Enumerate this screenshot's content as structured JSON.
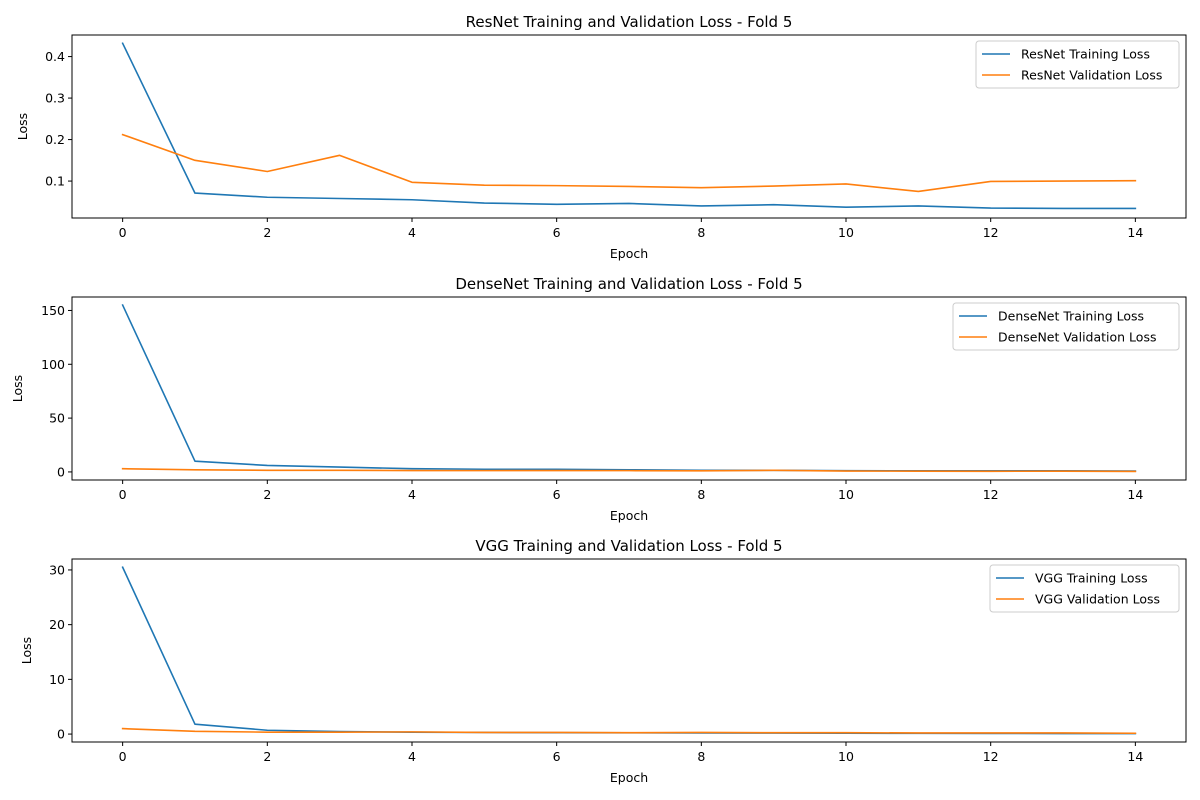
{
  "chart_data": [
    {
      "type": "line",
      "title": "ResNet Training and Validation Loss - Fold 5",
      "xlabel": "Epoch",
      "ylabel": "Loss",
      "xlim": [
        -0.7,
        14.7
      ],
      "ylim": [
        0.011,
        0.452
      ],
      "xticks": [
        0,
        2,
        4,
        6,
        8,
        10,
        12,
        14
      ],
      "yticks": [
        0.1,
        0.2,
        0.3,
        0.4
      ],
      "ytick_labels": [
        "0.1",
        "0.2",
        "0.3",
        "0.4"
      ],
      "grid": false,
      "legend": "top-right",
      "x": [
        0,
        1,
        2,
        3,
        4,
        5,
        6,
        7,
        8,
        9,
        10,
        11,
        12,
        13,
        14
      ],
      "series": [
        {
          "name": "ResNet Training Loss",
          "color": "#1f77b4",
          "values": [
            0.432,
            0.071,
            0.061,
            0.058,
            0.055,
            0.047,
            0.044,
            0.046,
            0.04,
            0.043,
            0.037,
            0.04,
            0.035,
            0.034,
            0.034
          ]
        },
        {
          "name": "ResNet Validation Loss",
          "color": "#ff7f0e",
          "values": [
            0.212,
            0.15,
            0.123,
            0.162,
            0.097,
            0.09,
            0.089,
            0.087,
            0.084,
            0.088,
            0.093,
            0.075,
            0.099,
            0.1,
            0.101
          ]
        }
      ]
    },
    {
      "type": "line",
      "title": "DenseNet Training and Validation Loss - Fold 5",
      "xlabel": "Epoch",
      "ylabel": "Loss",
      "xlim": [
        -0.7,
        14.7
      ],
      "ylim": [
        -7.5,
        162.5
      ],
      "xticks": [
        0,
        2,
        4,
        6,
        8,
        10,
        12,
        14
      ],
      "yticks": [
        0,
        50,
        100,
        150
      ],
      "ytick_labels": [
        "0",
        "50",
        "100",
        "150"
      ],
      "grid": false,
      "legend": "top-right",
      "x": [
        0,
        1,
        2,
        3,
        4,
        5,
        6,
        7,
        8,
        9,
        10,
        11,
        12,
        13,
        14
      ],
      "series": [
        {
          "name": "DenseNet Training Loss",
          "color": "#1f77b4",
          "values": [
            155.0,
            10.0,
            6.0,
            4.5,
            3.0,
            2.5,
            2.5,
            2.0,
            1.5,
            1.5,
            1.2,
            1.0,
            1.0,
            1.0,
            0.8
          ]
        },
        {
          "name": "DenseNet Validation Loss",
          "color": "#ff7f0e",
          "values": [
            3.0,
            2.0,
            1.5,
            1.5,
            1.3,
            1.2,
            1.3,
            1.2,
            1.0,
            1.5,
            0.8,
            0.7,
            0.6,
            0.7,
            0.5
          ]
        }
      ]
    },
    {
      "type": "line",
      "title": "VGG Training and Validation Loss - Fold 5",
      "xlabel": "Epoch",
      "ylabel": "Loss",
      "xlim": [
        -0.7,
        14.7
      ],
      "ylim": [
        -1.45,
        32.0
      ],
      "xticks": [
        0,
        2,
        4,
        6,
        8,
        10,
        12,
        14
      ],
      "yticks": [
        0,
        10,
        20,
        30
      ],
      "ytick_labels": [
        "0",
        "10",
        "20",
        "30"
      ],
      "grid": false,
      "legend": "top-right",
      "x": [
        0,
        1,
        2,
        3,
        4,
        5,
        6,
        7,
        8,
        9,
        10,
        11,
        12,
        13,
        14
      ],
      "series": [
        {
          "name": "VGG Training Loss",
          "color": "#1f77b4",
          "values": [
            30.5,
            1.8,
            0.7,
            0.45,
            0.35,
            0.3,
            0.25,
            0.22,
            0.2,
            0.18,
            0.15,
            0.14,
            0.12,
            0.1,
            0.08
          ]
        },
        {
          "name": "VGG Validation Loss",
          "color": "#ff7f0e",
          "values": [
            1.0,
            0.5,
            0.35,
            0.35,
            0.4,
            0.3,
            0.3,
            0.25,
            0.3,
            0.25,
            0.25,
            0.2,
            0.2,
            0.2,
            0.15
          ]
        }
      ]
    }
  ]
}
